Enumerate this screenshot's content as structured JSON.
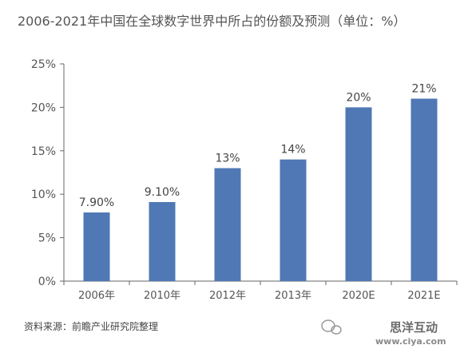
{
  "chart_data": {
    "type": "bar",
    "title": "2006-2021年中国在全球数字世界中所占的份额及预测（单位：%）",
    "categories": [
      "2006年",
      "2010年",
      "2012年",
      "2013年",
      "2020E",
      "2021E"
    ],
    "values": [
      7.9,
      9.1,
      13,
      14,
      20,
      21
    ],
    "data_labels": [
      "7.90%",
      "9.10%",
      "13%",
      "14%",
      "20%",
      "21%"
    ],
    "yticks": [
      "0%",
      "5%",
      "10%",
      "15%",
      "20%",
      "25%"
    ],
    "ylim": [
      0,
      25
    ],
    "grid": false,
    "bar_color": "#4f78b5"
  },
  "source": "资料来源：前瞻产业研究院整理",
  "watermark": {
    "text": "思洋互动",
    "url": "www.ciya.com"
  }
}
